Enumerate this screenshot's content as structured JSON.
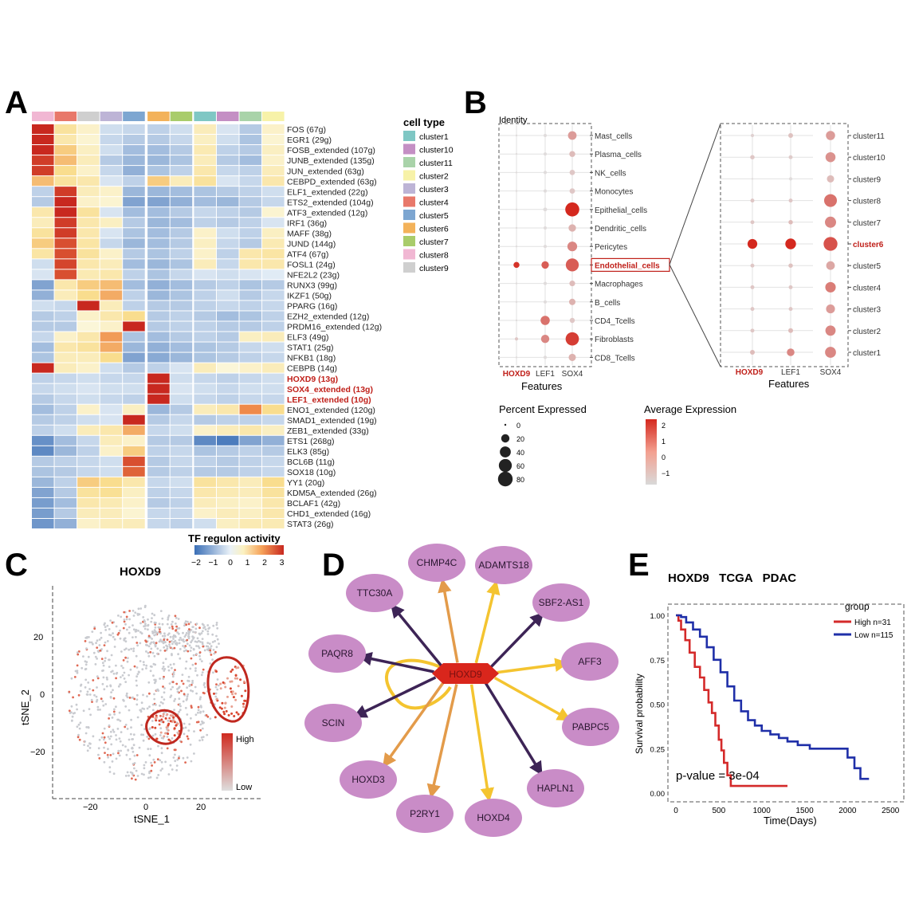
{
  "panel_labels": {
    "a": "A",
    "b": "B",
    "c": "C",
    "d": "D",
    "e": "E"
  },
  "panel_a": {
    "legend_title": "cell type",
    "legend": [
      {
        "label": "cluster1",
        "color": "#7fc7c4"
      },
      {
        "label": "cluster10",
        "color": "#c48fc4"
      },
      {
        "label": "cluster11",
        "color": "#a9d3a9"
      },
      {
        "label": "cluster2",
        "color": "#f7f2a8"
      },
      {
        "label": "cluster3",
        "color": "#bdb4d6"
      },
      {
        "label": "cluster4",
        "color": "#e8786a"
      },
      {
        "label": "cluster5",
        "color": "#7da6d1"
      },
      {
        "label": "cluster6",
        "color": "#f3b25a"
      },
      {
        "label": "cluster7",
        "color": "#a9cc6b"
      },
      {
        "label": "cluster8",
        "color": "#f1b7d3"
      },
      {
        "label": "cluster9",
        "color": "#cfcfcf"
      }
    ],
    "top_annotation": [
      "cluster8",
      "cluster4",
      "cluster9",
      "cluster3",
      "cluster5",
      "cluster6",
      "cluster7",
      "cluster1",
      "cluster10",
      "cluster11",
      "cluster2"
    ],
    "rows": [
      "FOS (67g)",
      "EGR1 (29g)",
      "FOSB_extended (107g)",
      "JUNB_extended (135g)",
      "JUN_extended (63g)",
      "CEBPD_extended (63g)",
      "ELF1_extended (22g)",
      "ETS2_extended (104g)",
      "ATF3_extended (12g)",
      "IRF1 (36g)",
      "MAFF (38g)",
      "JUND (144g)",
      "ATF4 (67g)",
      "FOSL1 (24g)",
      "NFE2L2 (23g)",
      "RUNX3 (99g)",
      "IKZF1 (50g)",
      "PPARG (16g)",
      "EZH2_extended (12g)",
      "PRDM16_extended (12g)",
      "ELF3 (49g)",
      "STAT1 (25g)",
      "NFKB1 (18g)",
      "CEBPB (14g)",
      "HOXD9 (13g)",
      "SOX4_extended (13g)",
      "LEF1_extended (10g)",
      "ENO1_extended (120g)",
      "SMAD1_extended (19g)",
      "ZEB1_extended (33g)",
      "ETS1 (268g)",
      "ELK3 (85g)",
      "BCL6B (11g)",
      "SOX18 (10g)",
      "YY1 (20g)",
      "KDM5A_extended (26g)",
      "BCLAF1 (42g)",
      "CHD1_extended (16g)",
      "STAT3 (26g)"
    ],
    "highlight_rows": [
      "HOXD9 (13g)",
      "SOX4_extended (13g)",
      "LEF1_extended (10g)"
    ],
    "colorbar_title": "TF regulon activity",
    "colorbar_ticks": [
      "−2",
      "−1",
      "0",
      "1",
      "2",
      "3"
    ]
  },
  "panel_b": {
    "identity_label": "Identity",
    "left_rows": [
      "Mast_cells",
      "Plasma_cells",
      "NK_cells",
      "Monocytes",
      "Epithelial_cells",
      "Dendritic_cells",
      "Pericytes",
      "Endothelial_cells",
      "Macrophages",
      "B_cells",
      "CD4_Tcells",
      "Fibroblasts",
      "CD8_Tcells"
    ],
    "left_highlight": "Endothelial_cells",
    "right_rows": [
      "cluster11",
      "cluster10",
      "cluster9",
      "cluster8",
      "cluster7",
      "cluster6",
      "cluster5",
      "cluster4",
      "cluster3",
      "cluster2",
      "cluster1"
    ],
    "right_highlight": "cluster6",
    "features": [
      "HOXD9",
      "LEF1",
      "SOX4"
    ],
    "xlabel": "Features",
    "pct_legend_title": "Percent Expressed",
    "pct_legend": [
      "0",
      "20",
      "40",
      "60",
      "80"
    ],
    "avg_legend_title": "Average Expression",
    "avg_legend": [
      "2",
      "1",
      "0",
      "−1"
    ]
  },
  "panel_c": {
    "title": "HOXD9",
    "xlabel": "tSNE_1",
    "ylabel": "tSNE_2",
    "xticks": [
      "−20",
      "0",
      "20"
    ],
    "yticks": [
      "20",
      "0",
      "−20"
    ],
    "legend_high": "High",
    "legend_low": "Low"
  },
  "panel_d": {
    "hub": "HOXD9",
    "targets": [
      "CHMP4C",
      "ADAMTS18",
      "SBF2-AS1",
      "AFF3",
      "PABPC5",
      "HAPLN1",
      "HOXD4",
      "P2RY1",
      "HOXD3",
      "SCIN",
      "PAQR8",
      "TTC30A"
    ]
  },
  "panel_e": {
    "title": "HOXD9   TCGA   PDAC",
    "legend_title": "group",
    "high_label": "High n=31",
    "low_label": "Low n=115",
    "pvalue": "p-value = 3e-04",
    "ylabel": "Survival probability",
    "xlabel": "Time(Days)",
    "yticks": [
      "1.00",
      "0.75",
      "0.50",
      "0.25",
      "0.00"
    ],
    "xticks": [
      "0",
      "500",
      "1000",
      "1500",
      "2000",
      "2500"
    ]
  },
  "chart_data": [
    {
      "type": "heatmap",
      "title": "TF regulon activity",
      "columns": [
        "cluster8",
        "cluster4",
        "cluster9",
        "cluster3",
        "cluster5",
        "cluster6",
        "cluster7",
        "cluster1",
        "cluster10",
        "cluster11",
        "cluster2"
      ],
      "rows": [
        "FOS",
        "EGR1",
        "FOSB_extended",
        "JUNB_extended",
        "JUN_extended",
        "CEBPD_extended",
        "ELF1_extended",
        "ETS2_extended",
        "ATF3_extended",
        "IRF1",
        "MAFF",
        "JUND",
        "ATF4",
        "FOSL1",
        "NFE2L2",
        "RUNX3",
        "IKZF1",
        "PPARG",
        "EZH2_extended",
        "PRDM16_extended",
        "ELF3",
        "STAT1",
        "NFKB1",
        "CEBPB",
        "HOXD9",
        "SOX4_extended",
        "LEF1_extended",
        "ENO1_extended",
        "SMAD1_extended",
        "ZEB1_extended",
        "ETS1",
        "ELK3",
        "BCL6B",
        "SOX18",
        "YY1",
        "KDM5A_extended",
        "BCLAF1",
        "CHD1_extended",
        "STAT3"
      ],
      "values": [
        [
          3.0,
          0.8,
          0.2,
          -0.3,
          -0.4,
          -0.5,
          -0.3,
          0.4,
          -0.2,
          -0.6,
          0.2
        ],
        [
          3.0,
          0.6,
          0.1,
          -0.4,
          -0.6,
          -0.6,
          -0.4,
          0.3,
          -0.3,
          -0.7,
          0.1
        ],
        [
          3.0,
          1.2,
          0.3,
          -0.3,
          -0.8,
          -0.8,
          -0.6,
          0.5,
          -0.5,
          -0.6,
          0.3
        ],
        [
          2.8,
          1.4,
          0.4,
          -0.6,
          -0.9,
          -0.9,
          -0.7,
          0.4,
          -0.6,
          -0.8,
          0.2
        ],
        [
          2.8,
          1.0,
          0.2,
          -0.4,
          -1.0,
          -0.7,
          -0.5,
          0.6,
          -0.4,
          -0.5,
          0.4
        ],
        [
          1.4,
          0.8,
          0.6,
          -0.2,
          -0.5,
          1.2,
          0.4,
          0.8,
          -0.2,
          -0.4,
          0.6
        ],
        [
          -0.5,
          2.8,
          0.4,
          0.2,
          -0.9,
          -0.9,
          -0.8,
          -0.7,
          -0.6,
          -0.5,
          -0.3
        ],
        [
          -0.6,
          3.0,
          0.2,
          0.1,
          -1.2,
          -1.2,
          -1.0,
          -0.8,
          -0.9,
          -0.6,
          -0.4
        ],
        [
          0.6,
          3.0,
          0.8,
          -0.2,
          -0.8,
          -0.8,
          -0.6,
          -0.4,
          -0.5,
          -0.6,
          0.1
        ],
        [
          0.4,
          2.8,
          0.6,
          0.3,
          -0.6,
          -0.9,
          -0.8,
          -0.5,
          -0.6,
          -0.5,
          -0.2
        ],
        [
          0.8,
          2.8,
          0.6,
          -0.2,
          -0.7,
          -0.8,
          -0.6,
          0.2,
          -0.3,
          -0.5,
          0.3
        ],
        [
          1.2,
          2.6,
          0.7,
          -0.4,
          -0.9,
          -0.8,
          -0.6,
          0.3,
          -0.4,
          -0.6,
          0.5
        ],
        [
          0.7,
          2.6,
          0.8,
          0.2,
          -0.6,
          -0.7,
          -0.5,
          0.2,
          -0.5,
          0.6,
          0.7
        ],
        [
          -0.3,
          2.7,
          0.6,
          0.4,
          -0.8,
          -0.9,
          -0.7,
          0.4,
          -0.4,
          0.6,
          0.6
        ],
        [
          -0.2,
          2.6,
          0.5,
          0.6,
          -0.5,
          -0.7,
          -0.4,
          -0.2,
          -0.3,
          -0.2,
          -0.1
        ],
        [
          -1.2,
          0.6,
          1.2,
          1.4,
          -0.8,
          -1.0,
          -0.8,
          -0.6,
          -0.5,
          -0.7,
          -0.6
        ],
        [
          -1.0,
          0.4,
          1.0,
          1.6,
          -0.5,
          -0.9,
          -0.7,
          -0.5,
          -0.3,
          -0.6,
          -0.4
        ],
        [
          -0.3,
          -0.4,
          3.0,
          0.4,
          -0.5,
          -0.6,
          -0.6,
          -0.5,
          -0.4,
          -0.5,
          -0.4
        ],
        [
          -0.6,
          -0.5,
          0.2,
          0.6,
          1.0,
          -0.6,
          -0.5,
          -0.6,
          -0.8,
          -0.7,
          -0.5
        ],
        [
          -0.6,
          -0.6,
          0.0,
          0.2,
          3.0,
          -0.6,
          -0.5,
          -0.5,
          -0.6,
          -0.6,
          -0.5
        ],
        [
          -0.4,
          0.2,
          0.6,
          1.8,
          -0.7,
          -0.8,
          -0.6,
          -0.5,
          -0.6,
          0.3,
          0.4
        ],
        [
          -0.8,
          0.6,
          0.8,
          1.6,
          -0.9,
          -1.0,
          -0.8,
          -0.7,
          -0.6,
          -0.4,
          -0.3
        ],
        [
          -0.7,
          0.4,
          0.4,
          1.0,
          -1.2,
          -1.1,
          -0.9,
          -0.7,
          -0.6,
          -0.5,
          -0.4
        ],
        [
          3.0,
          0.4,
          0.2,
          -0.3,
          -0.6,
          -0.5,
          -0.2,
          0.4,
          0.0,
          0.2,
          0.4
        ],
        [
          -0.5,
          -0.4,
          -0.3,
          -0.4,
          -0.4,
          3.0,
          -0.3,
          -0.4,
          -0.5,
          -0.4,
          -0.3
        ],
        [
          -0.4,
          -0.3,
          -0.2,
          -0.3,
          -0.3,
          3.0,
          -0.2,
          -0.3,
          -0.4,
          -0.3,
          -0.3
        ],
        [
          -0.6,
          -0.4,
          -0.3,
          -0.4,
          -0.5,
          3.0,
          -0.3,
          -0.4,
          -0.5,
          -0.4,
          -0.4
        ],
        [
          -0.8,
          -0.5,
          0.2,
          -0.2,
          0.3,
          -0.9,
          -0.6,
          0.4,
          0.6,
          2.0,
          1.0
        ],
        [
          -0.6,
          -0.5,
          -0.3,
          -0.2,
          3.0,
          -0.6,
          -0.4,
          -0.6,
          -0.5,
          -0.5,
          -0.4
        ],
        [
          -0.5,
          -0.3,
          0.4,
          0.6,
          1.6,
          -0.4,
          -0.3,
          0.2,
          0.4,
          0.6,
          0.3
        ],
        [
          -1.5,
          -0.8,
          -0.4,
          0.4,
          0.2,
          -0.6,
          -0.6,
          -1.6,
          -1.8,
          -1.2,
          -1.0
        ],
        [
          -1.6,
          -0.9,
          -0.5,
          0.2,
          1.2,
          -0.5,
          -0.4,
          -0.7,
          -0.6,
          -0.5,
          -0.6
        ],
        [
          -0.6,
          -0.5,
          -0.4,
          -0.3,
          2.6,
          -0.6,
          -0.4,
          -0.5,
          -0.6,
          -0.5,
          -0.4
        ],
        [
          -0.7,
          -0.6,
          -0.4,
          -0.3,
          2.4,
          -0.6,
          -0.5,
          -0.6,
          -0.6,
          -0.5,
          -0.4
        ],
        [
          -0.9,
          -0.5,
          1.2,
          1.0,
          0.6,
          -0.4,
          -0.3,
          0.8,
          0.6,
          0.4,
          1.0
        ],
        [
          -1.2,
          -0.6,
          0.8,
          0.9,
          0.3,
          -0.5,
          -0.4,
          0.6,
          0.5,
          0.4,
          0.8
        ],
        [
          -1.3,
          -0.8,
          0.6,
          0.5,
          0.2,
          -0.6,
          -0.5,
          0.4,
          0.3,
          0.2,
          0.6
        ],
        [
          -1.3,
          -0.6,
          0.4,
          0.4,
          0.1,
          -0.4,
          -0.4,
          0.2,
          0.4,
          0.3,
          0.6
        ],
        [
          -1.4,
          -1.0,
          0.2,
          0.4,
          0.4,
          -0.4,
          -0.5,
          -0.3,
          0.3,
          0.5,
          0.5
        ]
      ]
    },
    {
      "type": "scatter",
      "title": "Dot plot by cell type",
      "features": [
        "HOXD9",
        "LEF1",
        "SOX4"
      ],
      "rows": [
        "Mast_cells",
        "Plasma_cells",
        "NK_cells",
        "Monocytes",
        "Epithelial_cells",
        "Dendritic_cells",
        "Pericytes",
        "Endothelial_cells",
        "Macrophages",
        "B_cells",
        "CD4_Tcells",
        "Fibroblasts",
        "CD8_Tcells"
      ],
      "percent_expressed": [
        [
          0,
          1,
          22
        ],
        [
          0,
          1,
          8
        ],
        [
          0,
          1,
          6
        ],
        [
          0,
          1,
          6
        ],
        [
          0,
          2,
          72
        ],
        [
          0,
          1,
          15
        ],
        [
          0,
          1,
          30
        ],
        [
          8,
          15,
          60
        ],
        [
          0,
          1,
          7
        ],
        [
          0,
          1,
          10
        ],
        [
          0,
          26,
          5
        ],
        [
          1,
          20,
          64
        ],
        [
          0,
          1,
          14
        ]
      ],
      "average_expression": [
        [
          -1,
          -1,
          0.2
        ],
        [
          -1,
          -1,
          -0.4
        ],
        [
          -1,
          -1,
          -0.6
        ],
        [
          -1,
          -1,
          -0.6
        ],
        [
          -1,
          -1,
          2.4
        ],
        [
          -1,
          -1,
          -0.2
        ],
        [
          -1,
          -1,
          0.6
        ],
        [
          2.2,
          1.4,
          1.4
        ],
        [
          -1,
          -1,
          -0.4
        ],
        [
          -1,
          -1,
          -0.2
        ],
        [
          -1,
          1.0,
          -0.6
        ],
        [
          -0.6,
          0.6,
          2.0
        ],
        [
          -1,
          -1,
          -0.2
        ]
      ]
    },
    {
      "type": "scatter",
      "title": "Dot plot by endothelial cluster",
      "features": [
        "HOXD9",
        "LEF1",
        "SOX4"
      ],
      "rows": [
        "cluster11",
        "cluster10",
        "cluster9",
        "cluster8",
        "cluster7",
        "cluster6",
        "cluster5",
        "cluster4",
        "cluster3",
        "cluster2",
        "cluster1"
      ],
      "percent_expressed": [
        [
          1,
          4,
          26
        ],
        [
          3,
          2,
          32
        ],
        [
          0,
          1,
          14
        ],
        [
          2,
          2,
          58
        ],
        [
          2,
          3,
          42
        ],
        [
          30,
          38,
          70
        ],
        [
          2,
          3,
          22
        ],
        [
          2,
          2,
          36
        ],
        [
          2,
          2,
          24
        ],
        [
          2,
          4,
          34
        ],
        [
          4,
          16,
          40
        ]
      ],
      "average_expression": [
        [
          -0.8,
          -0.5,
          0.2
        ],
        [
          -0.6,
          -0.7,
          0.4
        ],
        [
          -1,
          -1,
          -0.4
        ],
        [
          -0.6,
          -0.6,
          1.0
        ],
        [
          -0.6,
          -0.4,
          0.6
        ],
        [
          2.4,
          2.4,
          1.6
        ],
        [
          -0.6,
          -0.5,
          0.0
        ],
        [
          -0.6,
          -0.6,
          0.8
        ],
        [
          -0.6,
          -0.6,
          0.2
        ],
        [
          -0.6,
          -0.4,
          0.6
        ],
        [
          -0.4,
          0.6,
          0.6
        ]
      ]
    },
    {
      "type": "line",
      "title": "HOXD9 TCGA PDAC",
      "xlabel": "Time(Days)",
      "ylabel": "Survival probability",
      "xlim": [
        0,
        2600
      ],
      "ylim": [
        0,
        1.05
      ],
      "series": [
        {
          "name": "High n=31",
          "color": "#d42a2a",
          "x": [
            0,
            30,
            60,
            110,
            160,
            220,
            280,
            330,
            380,
            420,
            460,
            500,
            530,
            560,
            600,
            640,
            700,
            1000,
            1300
          ],
          "y": [
            1.0,
            0.97,
            0.92,
            0.86,
            0.79,
            0.71,
            0.65,
            0.58,
            0.51,
            0.45,
            0.38,
            0.3,
            0.24,
            0.17,
            0.1,
            0.04,
            0.04,
            0.04,
            0.04
          ]
        },
        {
          "name": "Low n=115",
          "color": "#1f2fa8",
          "x": [
            0,
            60,
            120,
            200,
            280,
            360,
            440,
            520,
            600,
            680,
            760,
            840,
            920,
            1000,
            1100,
            1200,
            1300,
            1420,
            1560,
            1700,
            1850,
            2000,
            2080,
            2150,
            2250
          ],
          "y": [
            1.0,
            0.99,
            0.96,
            0.92,
            0.88,
            0.82,
            0.75,
            0.68,
            0.6,
            0.52,
            0.46,
            0.41,
            0.38,
            0.35,
            0.33,
            0.31,
            0.29,
            0.27,
            0.25,
            0.25,
            0.25,
            0.2,
            0.14,
            0.08,
            0.08
          ]
        }
      ],
      "annotation": "p-value = 3e-04"
    }
  ]
}
